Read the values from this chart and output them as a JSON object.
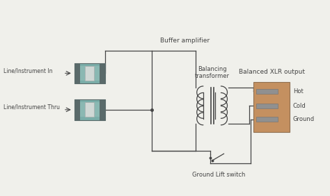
{
  "bg_color": "#f0f0eb",
  "line_color": "#444444",
  "connector_body_color": "#7aada8",
  "connector_dark": "#5a6a6a",
  "connector_light": "#d0d8d5",
  "connector_mid": "#8ab8b2",
  "xlr_body_color": "#c49060",
  "pin_color": "#909090",
  "labels": {
    "line_in": "Line/Instrument In",
    "line_thru": "Line/Instrument Thru",
    "buffer": "Buffer amplifier",
    "balancing": "Balancing\ntransformer",
    "xlr_output": "Balanced XLR output",
    "hot": "Hot",
    "cold": "Cold",
    "ground": "Ground",
    "gnd_lift": "Ground Lift switch"
  },
  "figsize": [
    4.74,
    2.82
  ],
  "dpi": 100
}
